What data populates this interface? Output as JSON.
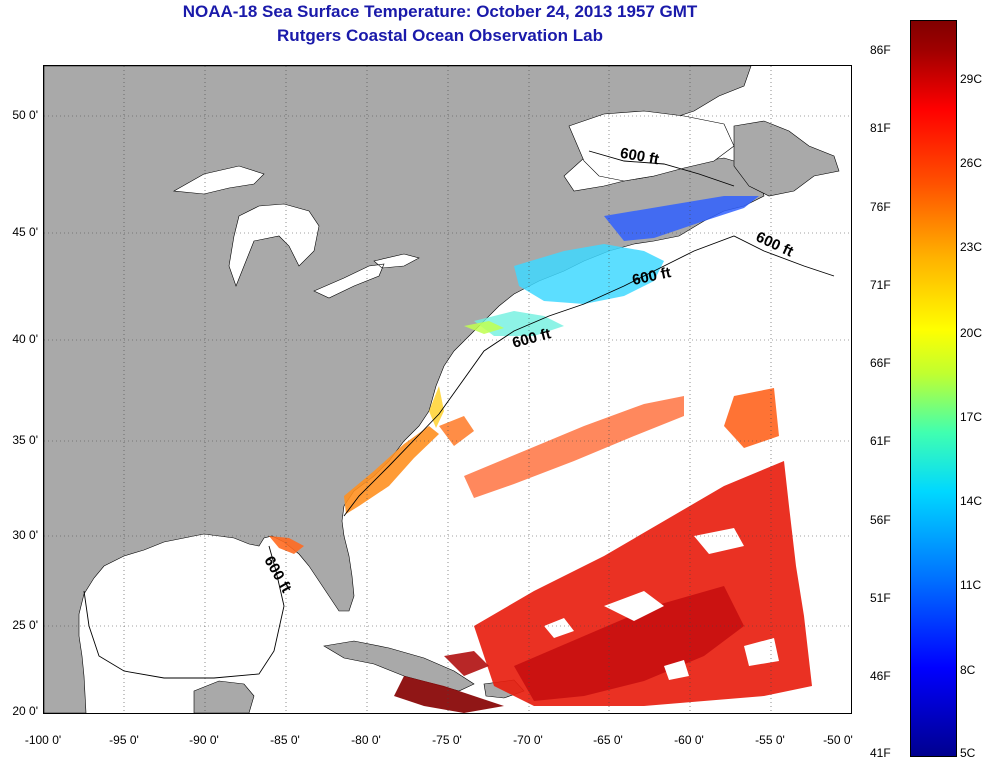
{
  "title": {
    "line1": "NOAA-18 Sea Surface Temperature:  October 24, 2013 1957 GMT",
    "line2": "Rutgers Coastal Ocean Observation Lab"
  },
  "axes": {
    "lat_labels": [
      "50 0'",
      "45 0'",
      "40 0'",
      "35 0'",
      "30 0'",
      "25 0'",
      "20 0'"
    ],
    "lon_labels": [
      "-100 0'",
      "-95 0'",
      "-90 0'",
      "-85 0'",
      "-80 0'",
      "-75 0'",
      "-70 0'",
      "-65 0'",
      "-60 0'",
      "-55 0'",
      "-50 0'"
    ]
  },
  "colorbar": {
    "fahrenheit_labels": [
      "86F",
      "81F",
      "76F",
      "71F",
      "66F",
      "61F",
      "56F",
      "51F",
      "46F",
      "41F"
    ],
    "celsius_labels": [
      "29C",
      "26C",
      "23C",
      "20C",
      "17C",
      "14C",
      "11C",
      "8C",
      "5C"
    ],
    "range_f": [
      41,
      86
    ],
    "range_c": [
      5,
      30
    ]
  },
  "contours": {
    "label": "600 ft"
  },
  "colors": {
    "land": "#a9a9a9",
    "title_text": "#1a1aaa",
    "no_data": "#ffffff"
  }
}
